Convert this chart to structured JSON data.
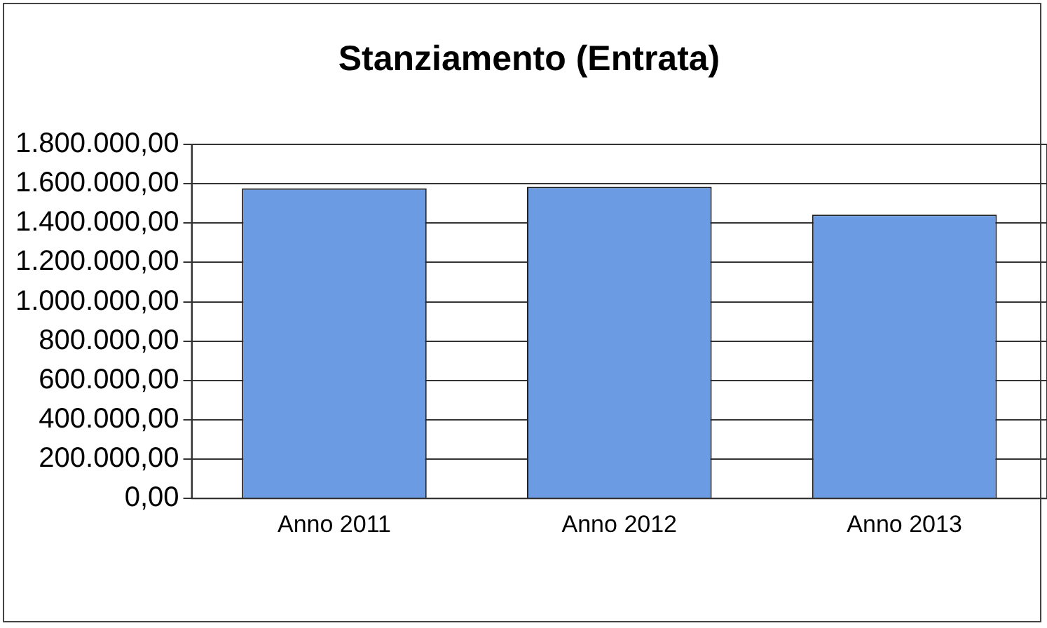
{
  "chart_data": {
    "type": "bar",
    "title": "Stanziamento (Entrata)",
    "categories": [
      "Anno 2011",
      "Anno 2012",
      "Anno 2013"
    ],
    "values": [
      1576000,
      1584000,
      1443000
    ],
    "color": "#6b9be3",
    "ylim": [
      0,
      1800000
    ],
    "yticks": [
      {
        "value": 0,
        "label": "0,00"
      },
      {
        "value": 200000,
        "label": "200.000,00"
      },
      {
        "value": 400000,
        "label": "400.000,00"
      },
      {
        "value": 600000,
        "label": "600.000,00"
      },
      {
        "value": 800000,
        "label": "800.000,00"
      },
      {
        "value": 1000000,
        "label": "1.000.000,00"
      },
      {
        "value": 1200000,
        "label": "1.200.000,00"
      },
      {
        "value": 1400000,
        "label": "1.400.000,00"
      },
      {
        "value": 1600000,
        "label": "1.600.000,00"
      },
      {
        "value": 1800000,
        "label": "1.800.000,00"
      }
    ],
    "grid": "y",
    "legend": false
  }
}
